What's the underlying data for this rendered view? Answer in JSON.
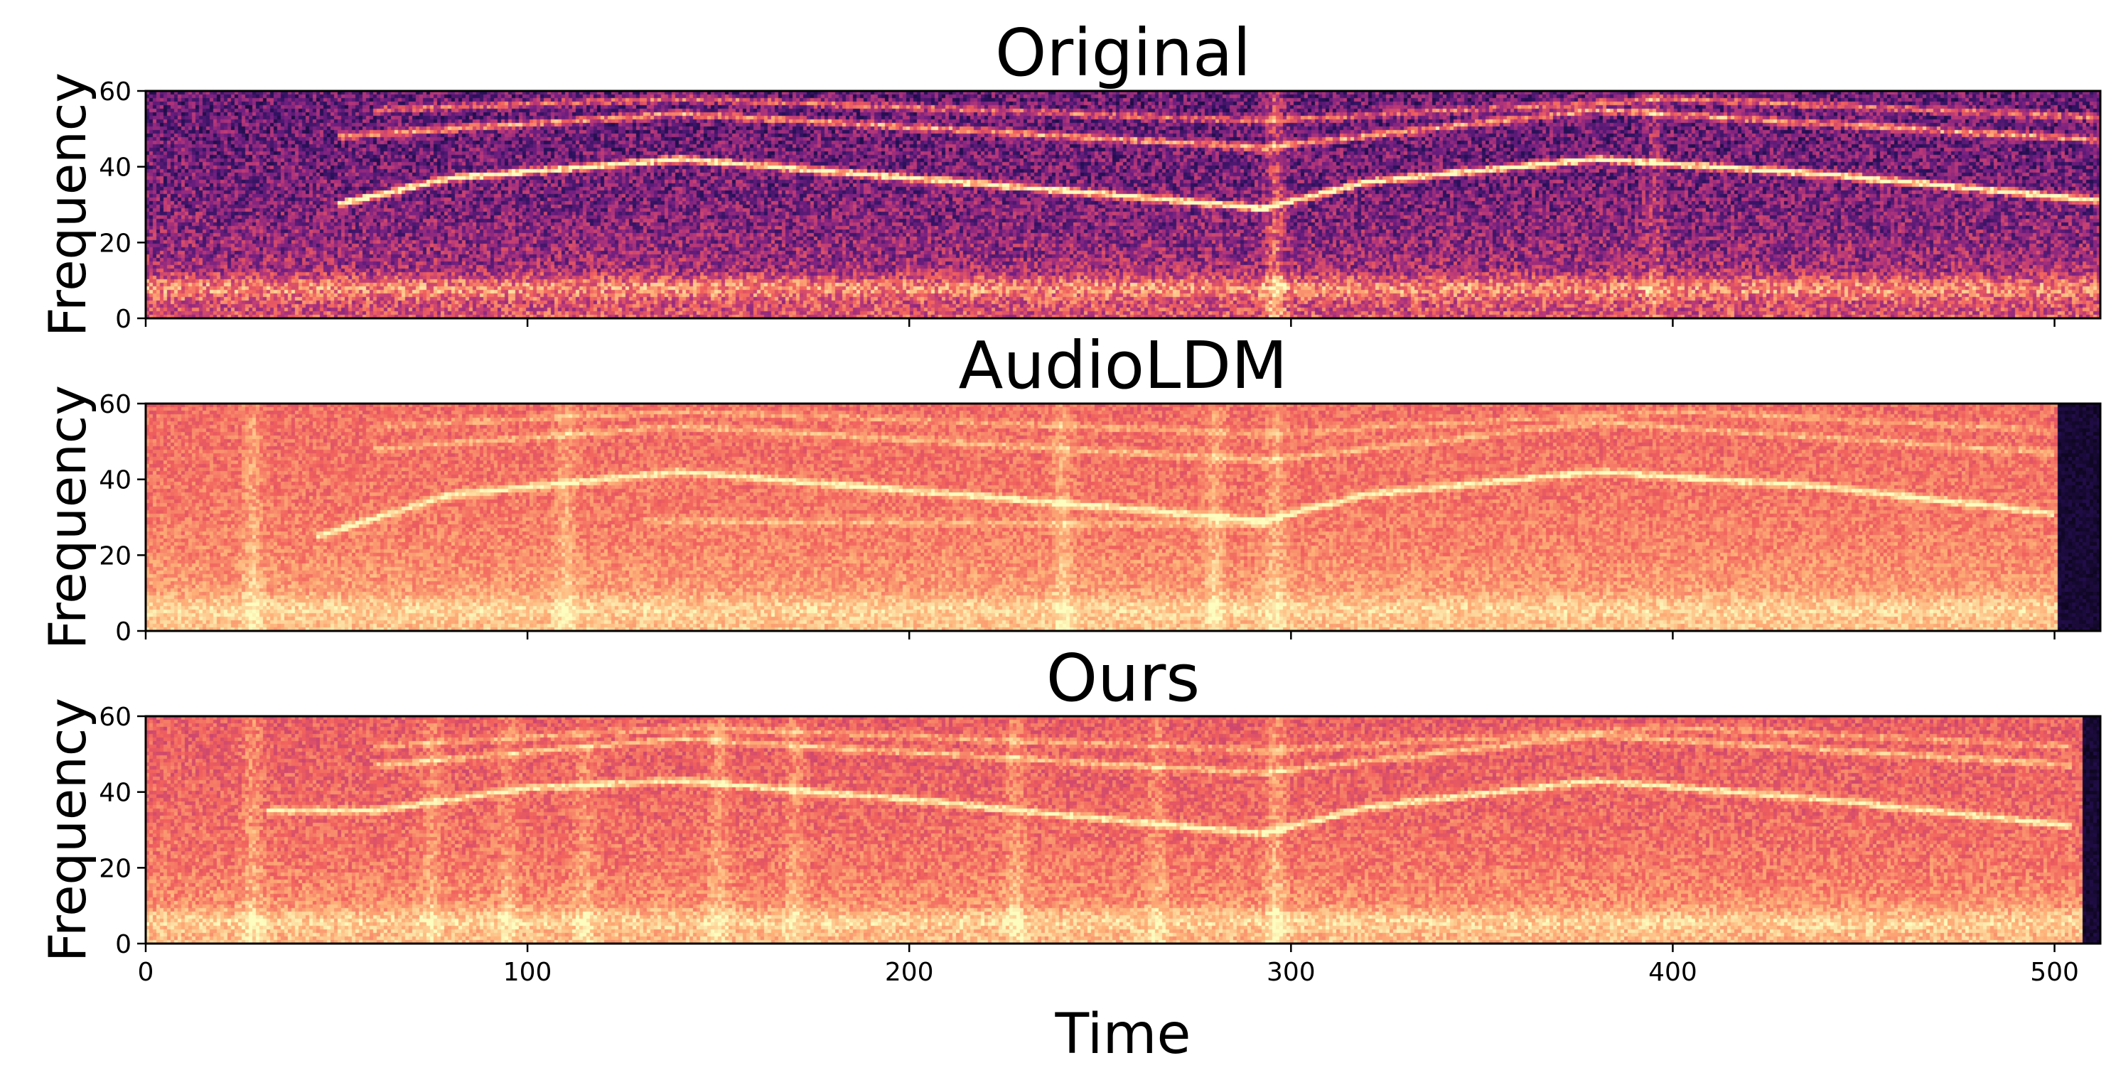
{
  "figure": {
    "xlabel": "Time"
  },
  "chart_data": [
    {
      "type": "heatmap",
      "title": "Original",
      "xlabel": "",
      "ylabel": "Frequency",
      "xlim": [
        0,
        512
      ],
      "ylim": [
        0,
        60
      ],
      "xticks": [
        0,
        100,
        200,
        300,
        400,
        500
      ],
      "yticks": [
        0,
        20,
        40,
        60
      ],
      "show_xtick_labels": false,
      "grid": false,
      "colormap": "magma",
      "palette": [
        "#000004",
        "#2c115f",
        "#721f81",
        "#b73779",
        "#f1605d",
        "#feb078",
        "#fcfdbf"
      ],
      "intensity": {
        "base": 0.3,
        "low_boost": 0.32,
        "decay": 0.055,
        "noise": 0.2,
        "band_low_freq": 8,
        "band_strength": 0.25,
        "line_strength": 0.55
      },
      "vertical_bands": [
        {
          "t": 296,
          "strength": 0.25
        },
        {
          "t": 395,
          "strength": 0.12
        }
      ],
      "end_dark_from": null,
      "harmonics": [
        {
          "points": [
            [
              50,
              30
            ],
            [
              80,
              37
            ],
            [
              140,
              42
            ],
            [
              200,
              37
            ],
            [
              260,
              32
            ],
            [
              293,
              29
            ],
            [
              320,
              36
            ],
            [
              380,
              42
            ],
            [
              440,
              38
            ],
            [
              512,
              31
            ]
          ],
          "strength": 0.75
        },
        {
          "points": [
            [
              50,
              48
            ],
            [
              140,
              54
            ],
            [
              293,
              45
            ],
            [
              380,
              55
            ],
            [
              512,
              47
            ]
          ],
          "strength": 0.45
        },
        {
          "points": [
            [
              60,
              55
            ],
            [
              140,
              58
            ],
            [
              293,
              52
            ],
            [
              400,
              58
            ],
            [
              512,
              53
            ]
          ],
          "strength": 0.35
        }
      ]
    },
    {
      "type": "heatmap",
      "title": "AudioLDM",
      "xlabel": "",
      "ylabel": "Frequency",
      "xlim": [
        0,
        512
      ],
      "ylim": [
        0,
        60
      ],
      "xticks": [
        0,
        100,
        200,
        300,
        400,
        500
      ],
      "yticks": [
        0,
        20,
        40,
        60
      ],
      "show_xtick_labels": false,
      "grid": false,
      "colormap": "magma",
      "palette": [
        "#000004",
        "#2c115f",
        "#721f81",
        "#b73779",
        "#f1605d",
        "#feb078",
        "#fcfdbf"
      ],
      "intensity": {
        "base": 0.68,
        "low_boost": 0.2,
        "decay": 0.05,
        "noise": 0.09,
        "band_low_freq": 6,
        "band_strength": 0.08,
        "line_strength": 0.2
      },
      "vertical_bands": [
        {
          "t": 28,
          "strength": 0.1
        },
        {
          "t": 110,
          "strength": 0.1
        },
        {
          "t": 240,
          "strength": 0.1
        },
        {
          "t": 280,
          "strength": 0.1
        },
        {
          "t": 296,
          "strength": 0.1
        }
      ],
      "end_dark_from": 501,
      "harmonics": [
        {
          "points": [
            [
              45,
              25
            ],
            [
              80,
              36
            ],
            [
              140,
              42
            ],
            [
              200,
              37
            ],
            [
              260,
              32
            ],
            [
              293,
              29
            ],
            [
              320,
              36
            ],
            [
              380,
              42
            ],
            [
              440,
              38
            ],
            [
              500,
              31
            ]
          ],
          "strength": 0.3
        },
        {
          "points": [
            [
              60,
              48
            ],
            [
              140,
              54
            ],
            [
              293,
              45
            ],
            [
              380,
              55
            ],
            [
              500,
              47
            ]
          ],
          "strength": 0.15
        },
        {
          "points": [
            [
              60,
              54
            ],
            [
              140,
              58
            ],
            [
              293,
              52
            ],
            [
              400,
              58
            ],
            [
              500,
              53
            ]
          ],
          "strength": 0.12
        },
        {
          "points": [
            [
              130,
              29
            ],
            [
              293,
              28
            ]
          ],
          "strength": 0.12
        }
      ]
    },
    {
      "type": "heatmap",
      "title": "Ours",
      "xlabel": "Time",
      "ylabel": "Frequency",
      "xlim": [
        0,
        512
      ],
      "ylim": [
        0,
        60
      ],
      "xticks": [
        0,
        100,
        200,
        300,
        400,
        500
      ],
      "yticks": [
        0,
        20,
        40,
        60
      ],
      "show_xtick_labels": true,
      "grid": false,
      "colormap": "magma",
      "palette": [
        "#000004",
        "#2c115f",
        "#721f81",
        "#b73779",
        "#f1605d",
        "#feb078",
        "#fcfdbf"
      ],
      "intensity": {
        "base": 0.64,
        "low_boost": 0.22,
        "decay": 0.05,
        "noise": 0.1,
        "band_low_freq": 6,
        "band_strength": 0.1,
        "line_strength": 0.22
      },
      "vertical_bands": [
        {
          "t": 28,
          "strength": 0.1
        },
        {
          "t": 75,
          "strength": 0.09
        },
        {
          "t": 95,
          "strength": 0.09
        },
        {
          "t": 115,
          "strength": 0.09
        },
        {
          "t": 150,
          "strength": 0.1
        },
        {
          "t": 170,
          "strength": 0.09
        },
        {
          "t": 228,
          "strength": 0.1
        },
        {
          "t": 265,
          "strength": 0.09
        },
        {
          "t": 296,
          "strength": 0.12
        }
      ],
      "end_dark_from": 507,
      "harmonics": [
        {
          "points": [
            [
              32,
              35
            ],
            [
              60,
              35
            ],
            [
              100,
              41
            ],
            [
              140,
              43
            ],
            [
              200,
              38
            ],
            [
              260,
              32
            ],
            [
              293,
              29
            ],
            [
              320,
              36
            ],
            [
              380,
              43
            ],
            [
              440,
              38
            ],
            [
              505,
              31
            ]
          ],
          "strength": 0.32
        },
        {
          "points": [
            [
              60,
              47
            ],
            [
              140,
              54
            ],
            [
              293,
              45
            ],
            [
              380,
              55
            ],
            [
              505,
              47
            ]
          ],
          "strength": 0.2
        },
        {
          "points": [
            [
              60,
              52
            ],
            [
              140,
              57
            ],
            [
              293,
              51
            ],
            [
              400,
              57
            ],
            [
              505,
              52
            ]
          ],
          "strength": 0.15
        }
      ]
    }
  ]
}
